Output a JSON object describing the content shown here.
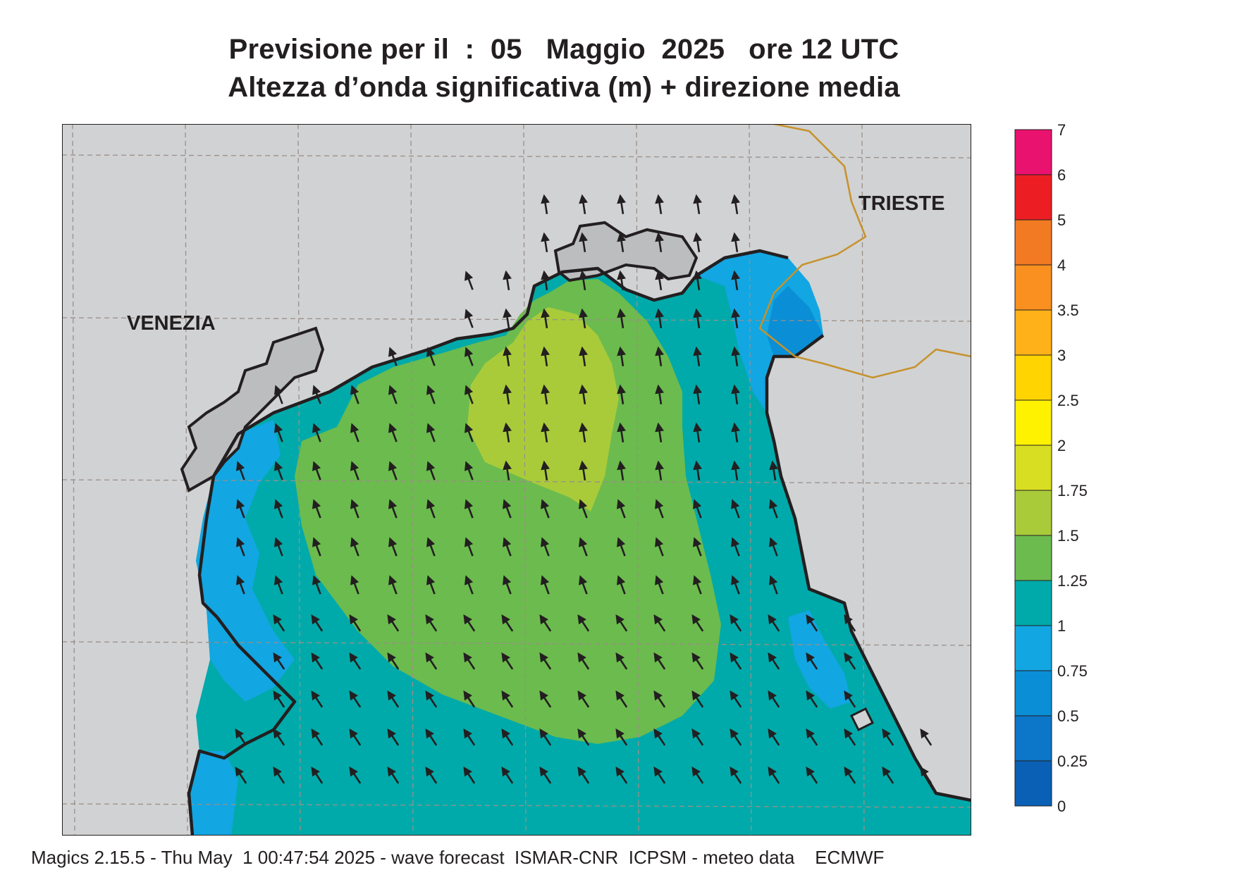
{
  "title": {
    "line1": "Previsione per il  :  05   Maggio  2025   ore 12 UTC",
    "line2": "Altezza d’onda significativa (m) + direzione media"
  },
  "labels": {
    "venezia": "VENEZIA",
    "trieste": "TRIESTE"
  },
  "legend": {
    "ticks": [
      "0",
      "0.25",
      "0.5",
      "0.75",
      "1",
      "1.25",
      "1.5",
      "1.75",
      "2",
      "2.5",
      "3",
      "3.5",
      "4",
      "5",
      "6",
      "7"
    ],
    "colors": [
      "#0a60b4",
      "#0c76c8",
      "#0a8ed6",
      "#12a6e2",
      "#00aaaa",
      "#6cbb4e",
      "#a9cb3a",
      "#d8df22",
      "#fff200",
      "#ffd400",
      "#ffb11a",
      "#f99020",
      "#f27a22",
      "#ec1e24",
      "#e9126e"
    ]
  },
  "map_colors": {
    "land": "#d1d2d4",
    "land_lagoon": "#bcbdbf",
    "sea_075_1": "#12a6e2",
    "sea_05_075": "#0a8ed6",
    "sea_1_125": "#00aaaa",
    "sea_125_15": "#6cbb4e",
    "sea_15_175": "#a9cb3a",
    "border": "#c6922a"
  },
  "wave_direction": "north-northwest",
  "footer": "Magics 2.15.5 - Thu May  1 00:47:54 2025 - wave forecast  ISMAR-CNR  ICPSM - meteo data    ECMWF"
}
